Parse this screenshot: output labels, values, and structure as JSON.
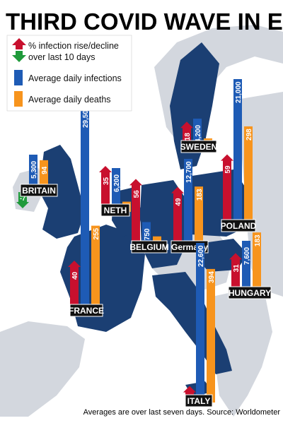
{
  "title": "THIRD COVID WAVE IN EUROPE",
  "legend": {
    "rise_line1": "% infection rise/decline",
    "rise_line2": "over last 10 days",
    "infections": "Average daily infections",
    "deaths": "Average daily deaths"
  },
  "footnote": "Averages are over last seven days.  Source: Worldometer",
  "colors": {
    "rise": "#c8102e",
    "decline": "#1f9a3b",
    "infections": "#1e5bb5",
    "deaths": "#f7941d",
    "sea": "#ffffff",
    "land_other": "#d3d7de",
    "land_featured": "#1b3f73"
  },
  "chart_data": {
    "type": "bar",
    "title": "THIRD COVID WAVE IN EUROPE",
    "units": {
      "change": "% infection rise/decline over last 10 days",
      "infections": "Average daily infections",
      "deaths": "Average daily deaths"
    },
    "countries": [
      {
        "name": "BRITAIN",
        "change": -7,
        "infections": 5300,
        "deaths": 94,
        "change_label": "-7",
        "infections_label": "5,300",
        "deaths_label": "94"
      },
      {
        "name": "FRANCE",
        "change": 40,
        "infections": 29500,
        "deaths": 255,
        "change_label": "40",
        "infections_label": "29,500",
        "deaths_label": "255"
      },
      {
        "name": "NETH",
        "change": 35,
        "infections": 6200,
        "deaths": 30,
        "change_label": "35",
        "infections_label": "6,200",
        "deaths_label": "30"
      },
      {
        "name": "BELGIUM",
        "change": 56,
        "infections": 3750,
        "deaths": 36,
        "change_label": "56",
        "infections_label": "3,750",
        "deaths_label": "36"
      },
      {
        "name": "Germany",
        "change": 49,
        "infections": 12700,
        "deaths": 183,
        "change_label": "49",
        "infections_label": "12,700",
        "deaths_label": "183"
      },
      {
        "name": "SWEDEN",
        "change": 18,
        "infections": 4200,
        "deaths": 9,
        "change_label": "18",
        "infections_label": "4,200",
        "deaths_label": "9"
      },
      {
        "name": "POLAND",
        "change": 59,
        "infections": 21000,
        "deaths": 298,
        "change_label": "59",
        "infections_label": "21,000",
        "deaths_label": "298"
      },
      {
        "name": "HUNGARY",
        "change": 31,
        "infections": 7600,
        "deaths": 183,
        "change_label": "31",
        "infections_label": "7,600",
        "deaths_label": "183"
      },
      {
        "name": "ITALY",
        "change": 9,
        "infections": 22600,
        "deaths": 394,
        "change_label": "9",
        "infections_label": "22,600",
        "deaths_label": "394"
      }
    ]
  }
}
